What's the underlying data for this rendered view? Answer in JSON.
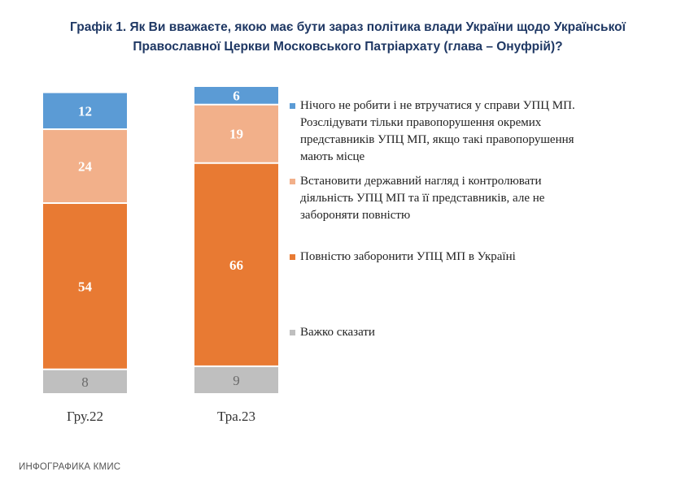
{
  "title": {
    "line1": "Графік 1. Як Ви вважаєте, якою має бути зараз політика влади України щодо Української",
    "line2": "Православної Церкви Московського Патріархату (глава – Онуфрій)?"
  },
  "chart_data": {
    "type": "bar",
    "stacked": true,
    "percent": true,
    "categories": [
      "Гру.22",
      "Тра.23"
    ],
    "series": [
      {
        "name": "Важко сказати",
        "values": [
          8,
          9
        ],
        "color": "#bfbfbf",
        "label_color": "#6b6b6b"
      },
      {
        "name": "Повністю заборонити УПЦ МП в Україні",
        "values": [
          54,
          66
        ],
        "color": "#e87a33",
        "label_color": "#ffffff"
      },
      {
        "name": "Встановити державний нагляд і контролювати діяльність УПЦ МП та її представників, але не забороняти повністю",
        "values": [
          24,
          19
        ],
        "color": "#f2b08a",
        "label_color": "#ffffff"
      },
      {
        "name": "Нічого не робити і не втручатися у справи УПЦ МП. Розслідувати тільки правопорушення окремих представників УПЦ МП, якщо такі правопорушення мають місце",
        "values": [
          12,
          6
        ],
        "color": "#5b9bd5",
        "label_color": "#ffffff"
      }
    ],
    "ylim": [
      0,
      100
    ],
    "xlabel": "",
    "ylabel": "",
    "grid": false,
    "legend_position": "right"
  },
  "legend": [
    {
      "text": "Нічого не робити і не втручатися у справи УПЦ МП.\nРозслідувати тільки правопорушення окремих\nпредставників УПЦ МП, якщо такі правопорушення\nмають місце",
      "color": "#5b9bd5"
    },
    {
      "text": "Встановити державний нагляд і контролювати\nдіяльність УПЦ МП та її представників, але не\nзабороняти повністю",
      "color": "#f2b08a"
    },
    {
      "text": "Повністю заборонити УПЦ МП в Україні",
      "color": "#e87a33"
    },
    {
      "text": "Важко сказати",
      "color": "#bfbfbf"
    }
  ],
  "footer": "ИНФОГРАФИКА КМИС"
}
